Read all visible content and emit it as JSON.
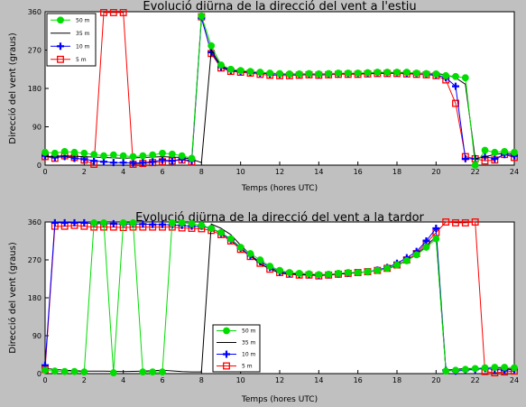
{
  "chart_data": [
    {
      "type": "line",
      "title": "Evolució diürna de la direcció del vent a l'estiu",
      "xlabel": "Temps (hores UTC)",
      "ylabel": "Direcció del vent (graus)",
      "xlim": [
        0,
        24
      ],
      "ylim": [
        0,
        360
      ],
      "xticks": [
        0,
        2,
        4,
        6,
        8,
        10,
        12,
        14,
        16,
        18,
        20,
        22,
        24
      ],
      "yticks": [
        0,
        90,
        180,
        270,
        360
      ],
      "grid": false,
      "legend": "top-left",
      "series": [
        {
          "name": "50 m",
          "color": "#00dd00",
          "marker": "circle",
          "x": [
            0,
            0.5,
            1,
            1.5,
            2,
            2.5,
            3,
            3.5,
            4,
            4.5,
            5,
            5.5,
            6,
            6.5,
            7,
            7.5,
            8,
            8.5,
            9,
            9.5,
            10,
            10.5,
            11,
            11.5,
            12,
            12.5,
            13,
            13.5,
            14,
            14.5,
            15,
            15.5,
            16,
            16.5,
            17,
            17.5,
            18,
            18.5,
            19,
            19.5,
            20,
            20.5,
            21,
            21.5,
            22,
            22.5,
            23,
            23.5,
            24
          ],
          "y": [
            30,
            28,
            32,
            30,
            28,
            25,
            22,
            24,
            22,
            20,
            22,
            24,
            28,
            26,
            22,
            16,
            350,
            280,
            235,
            225,
            222,
            220,
            218,
            216,
            215,
            214,
            214,
            215,
            214,
            215,
            216,
            216,
            216,
            217,
            218,
            218,
            218,
            218,
            216,
            215,
            214,
            210,
            208,
            205,
            0,
            35,
            30,
            32,
            30
          ]
        },
        {
          "name": "35 m",
          "color": "#000000",
          "marker": "none",
          "x": [
            0,
            1,
            2,
            3,
            4,
            5,
            6,
            7,
            7.5,
            8,
            8.5,
            9,
            9.5,
            10,
            11,
            12,
            13,
            14,
            15,
            16,
            17,
            18,
            19,
            20,
            20.5,
            21,
            21.5,
            22,
            22.5,
            23,
            23.5,
            24
          ],
          "y": [
            20,
            22,
            20,
            18,
            16,
            18,
            20,
            18,
            14,
            6,
            270,
            232,
            224,
            220,
            218,
            214,
            214,
            214,
            215,
            215,
            216,
            217,
            216,
            215,
            212,
            205,
            190,
            15,
            20,
            25,
            28,
            26
          ]
        },
        {
          "name": "10 m",
          "color": "#0000ff",
          "marker": "plus",
          "x": [
            0,
            0.5,
            1,
            1.5,
            2,
            2.5,
            3,
            3.5,
            4,
            4.5,
            5,
            5.5,
            6,
            6.5,
            7,
            7.5,
            8,
            8.5,
            9,
            9.5,
            10,
            10.5,
            11,
            11.5,
            12,
            12.5,
            13,
            13.5,
            14,
            14.5,
            15,
            15.5,
            16,
            16.5,
            17,
            17.5,
            18,
            18.5,
            19,
            19.5,
            20,
            20.5,
            21,
            21.5,
            22,
            22.5,
            23,
            23.5,
            24
          ],
          "y": [
            22,
            18,
            20,
            16,
            14,
            10,
            8,
            6,
            6,
            5,
            6,
            8,
            12,
            10,
            14,
            10,
            345,
            265,
            230,
            222,
            220,
            218,
            216,
            214,
            213,
            213,
            213,
            214,
            213,
            214,
            215,
            215,
            215,
            216,
            217,
            217,
            217,
            216,
            215,
            214,
            212,
            205,
            185,
            15,
            15,
            20,
            15,
            25,
            22
          ]
        },
        {
          "name": "5 m",
          "color": "#ff0000",
          "marker": "square",
          "x": [
            0,
            0.5,
            1,
            1.5,
            2,
            2.5,
            3,
            3.5,
            4,
            4.5,
            5,
            5.5,
            6,
            6.5,
            7,
            7.5,
            8,
            8.5,
            9,
            9.5,
            10,
            10.5,
            11,
            11.5,
            12,
            12.5,
            13,
            13.5,
            14,
            14.5,
            15,
            15.5,
            16,
            16.5,
            17,
            17.5,
            18,
            18.5,
            19,
            19.5,
            20,
            20.5,
            21,
            21.5,
            22,
            22.5,
            23,
            23.5,
            24
          ],
          "y": [
            20,
            16,
            22,
            18,
            12,
            2,
            358,
            358,
            358,
            2,
            4,
            6,
            8,
            10,
            12,
            8,
            348,
            262,
            228,
            220,
            218,
            216,
            213,
            211,
            210,
            210,
            211,
            212,
            211,
            212,
            213,
            213,
            213,
            214,
            215,
            215,
            215,
            214,
            213,
            212,
            210,
            200,
            145,
            20,
            15,
            10,
            12,
            25,
            18
          ]
        }
      ]
    },
    {
      "type": "line",
      "title": "Evolució diürna de la direcció del vent a la tardor",
      "xlabel": "Temps (hores UTC)",
      "ylabel": "Direcció del vent (graus)",
      "xlim": [
        0,
        24
      ],
      "ylim": [
        0,
        360
      ],
      "xticks": [
        0,
        2,
        4,
        6,
        8,
        10,
        12,
        14,
        16,
        18,
        20,
        22,
        24
      ],
      "yticks": [
        0,
        90,
        180,
        270,
        360
      ],
      "grid": false,
      "legend": "bottom-center",
      "series": [
        {
          "name": "50 m",
          "color": "#00dd00",
          "marker": "circle",
          "x": [
            0,
            0.5,
            1,
            1.5,
            2,
            2.5,
            3,
            3.5,
            4,
            4.5,
            5,
            5.5,
            6,
            6.5,
            7,
            7.5,
            8,
            8.5,
            9,
            9.5,
            10,
            10.5,
            11,
            11.5,
            12,
            12.5,
            13,
            13.5,
            14,
            14.5,
            15,
            15.5,
            16,
            16.5,
            17,
            17.5,
            18,
            18.5,
            19,
            19.5,
            20,
            20.5,
            21,
            21.5,
            22,
            22.5,
            23,
            23.5,
            24
          ],
          "y": [
            8,
            6,
            5,
            5,
            4,
            358,
            358,
            2,
            358,
            358,
            4,
            4,
            4,
            358,
            358,
            356,
            352,
            345,
            335,
            320,
            300,
            285,
            270,
            255,
            245,
            240,
            238,
            237,
            235,
            236,
            238,
            240,
            240,
            242,
            245,
            250,
            258,
            268,
            282,
            300,
            320,
            6,
            8,
            10,
            12,
            14,
            15,
            15,
            14
          ]
        },
        {
          "name": "35 m",
          "color": "#000000",
          "marker": "none",
          "x": [
            0,
            1,
            2,
            3,
            4,
            5,
            6,
            7,
            7.5,
            8,
            8.5,
            9,
            9.5,
            10,
            11,
            12,
            13,
            14,
            15,
            16,
            17,
            18,
            19,
            20,
            20.5,
            21,
            21.5,
            22,
            22.5,
            23,
            23.5,
            24
          ],
          "y": [
            12,
            8,
            6,
            6,
            5,
            6,
            8,
            5,
            4,
            4,
            355,
            345,
            330,
            305,
            260,
            238,
            235,
            234,
            236,
            240,
            244,
            256,
            282,
            325,
            8,
            10,
            12,
            12,
            14,
            14,
            12,
            10
          ]
        },
        {
          "name": "10 m",
          "color": "#0000ff",
          "marker": "plus",
          "x": [
            0,
            0.5,
            1,
            1.5,
            2,
            2.5,
            3,
            3.5,
            4,
            4.5,
            5,
            5.5,
            6,
            6.5,
            7,
            7.5,
            8,
            8.5,
            9,
            9.5,
            10,
            10.5,
            11,
            11.5,
            12,
            12.5,
            13,
            13.5,
            14,
            14.5,
            15,
            15.5,
            16,
            16.5,
            17,
            17.5,
            18,
            18.5,
            19,
            19.5,
            20,
            20.5,
            21,
            21.5,
            22,
            22.5,
            23,
            23.5,
            24
          ],
          "y": [
            20,
            358,
            358,
            358,
            358,
            356,
            356,
            356,
            355,
            355,
            355,
            354,
            354,
            353,
            352,
            350,
            350,
            345,
            333,
            318,
            298,
            280,
            266,
            252,
            242,
            238,
            236,
            235,
            234,
            235,
            237,
            239,
            240,
            242,
            246,
            252,
            262,
            275,
            290,
            315,
            345,
            8,
            6,
            8,
            10,
            12,
            10,
            8,
            10
          ]
        },
        {
          "name": "5 m",
          "color": "#ff0000",
          "marker": "square",
          "x": [
            0,
            0.5,
            1,
            1.5,
            2,
            2.5,
            3,
            3.5,
            4,
            4.5,
            5,
            5.5,
            6,
            6.5,
            7,
            7.5,
            8,
            8.5,
            9,
            9.5,
            10,
            10.5,
            11,
            11.5,
            12,
            12.5,
            13,
            13.5,
            14,
            14.5,
            15,
            15.5,
            16,
            16.5,
            17,
            17.5,
            18,
            18.5,
            19,
            19.5,
            20,
            20.5,
            21,
            21.5,
            22,
            22.5,
            23,
            23.5,
            24
          ],
          "y": [
            10,
            350,
            350,
            352,
            350,
            348,
            348,
            348,
            347,
            348,
            348,
            348,
            348,
            348,
            346,
            345,
            344,
            340,
            330,
            315,
            295,
            278,
            262,
            248,
            240,
            236,
            234,
            234,
            232,
            234,
            236,
            238,
            240,
            242,
            245,
            250,
            258,
            270,
            285,
            310,
            335,
            360,
            358,
            358,
            360,
            5,
            2,
            4,
            6
          ]
        }
      ]
    }
  ]
}
